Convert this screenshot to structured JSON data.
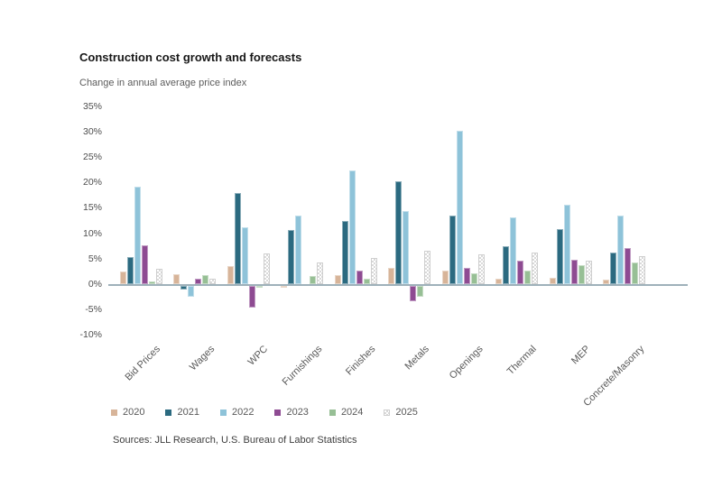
{
  "chart_data": {
    "type": "bar",
    "title": "Construction cost growth and forecasts",
    "subtitle": "Change in annual average price index",
    "source": "Sources: JLL Research, U.S. Bureau of Labor Statistics",
    "categories": [
      "Bid Prices",
      "Wages",
      "WPC",
      "Furnishings",
      "Finishes",
      "Metals",
      "Openings",
      "Thermal",
      "MEP",
      "Concrete/Masonry"
    ],
    "series": [
      {
        "name": "2020",
        "color": "#d7b499",
        "values": [
          2.5,
          1.9,
          3.5,
          -0.4,
          1.7,
          3.2,
          2.6,
          1.0,
          1.2,
          0.8
        ]
      },
      {
        "name": "2021",
        "color": "#2b6a80",
        "values": [
          5.3,
          -0.8,
          17.9,
          10.6,
          12.4,
          20.3,
          13.5,
          7.4,
          10.8,
          6.2
        ]
      },
      {
        "name": "2022",
        "color": "#8ec3d9",
        "values": [
          19.2,
          -2.2,
          11.1,
          13.4,
          22.3,
          14.3,
          30.2,
          13.2,
          15.7,
          13.4
        ]
      },
      {
        "name": "2023",
        "color": "#8e4b92",
        "values": [
          7.6,
          1.1,
          -4.3,
          0,
          2.7,
          -3.0,
          3.1,
          4.5,
          4.8,
          7.1
        ]
      },
      {
        "name": "2024",
        "color": "#97bf95",
        "values": [
          0.5,
          1.7,
          -0.4,
          1.6,
          1.1,
          -2.1,
          2.1,
          2.6,
          3.7,
          4.3
        ]
      },
      {
        "name": "2025",
        "color": null,
        "pattern": "checker",
        "pattern_color": "#d9d9d9",
        "values": [
          3.0,
          1.0,
          6.0,
          4.2,
          5.2,
          6.6,
          5.9,
          6.2,
          4.6,
          5.5
        ]
      }
    ],
    "ytick_labels": [
      "35%",
      "30%",
      "25%",
      "20%",
      "15%",
      "10%",
      "5%",
      "0%",
      "-5%",
      "-10%"
    ],
    "ylim": [
      -10,
      35
    ],
    "grid": false,
    "legend_position": "bottom",
    "axis_line_color": "#9fb1ba",
    "background_color": "#ffffff"
  }
}
